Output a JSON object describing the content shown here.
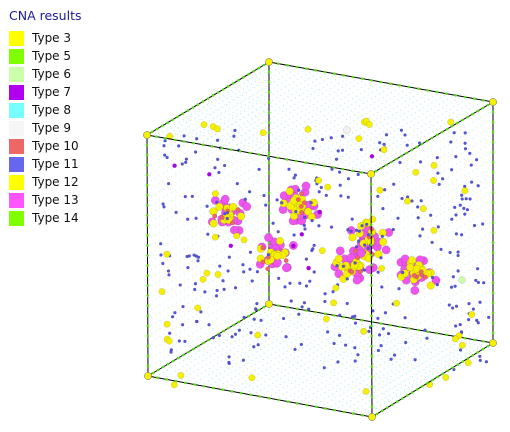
{
  "legend": {
    "title": "CNA results",
    "items": [
      {
        "label": "Type 3",
        "color": "#ffff00"
      },
      {
        "label": "Type 5",
        "color": "#7fff00"
      },
      {
        "label": "Type 6",
        "color": "#ccffaa"
      },
      {
        "label": "Type 7",
        "color": "#b000ee"
      },
      {
        "label": "Type 8",
        "color": "#77ffff"
      },
      {
        "label": "Type 9",
        "color": "#f6f6f6"
      },
      {
        "label": "Type 10",
        "color": "#ee6666"
      },
      {
        "label": "Type 11",
        "color": "#6666ee"
      },
      {
        "label": "Type 12",
        "color": "#ffff00"
      },
      {
        "label": "Type 13",
        "color": "#ff55ff"
      },
      {
        "label": "Type 14",
        "color": "#7fff00"
      }
    ]
  }
}
